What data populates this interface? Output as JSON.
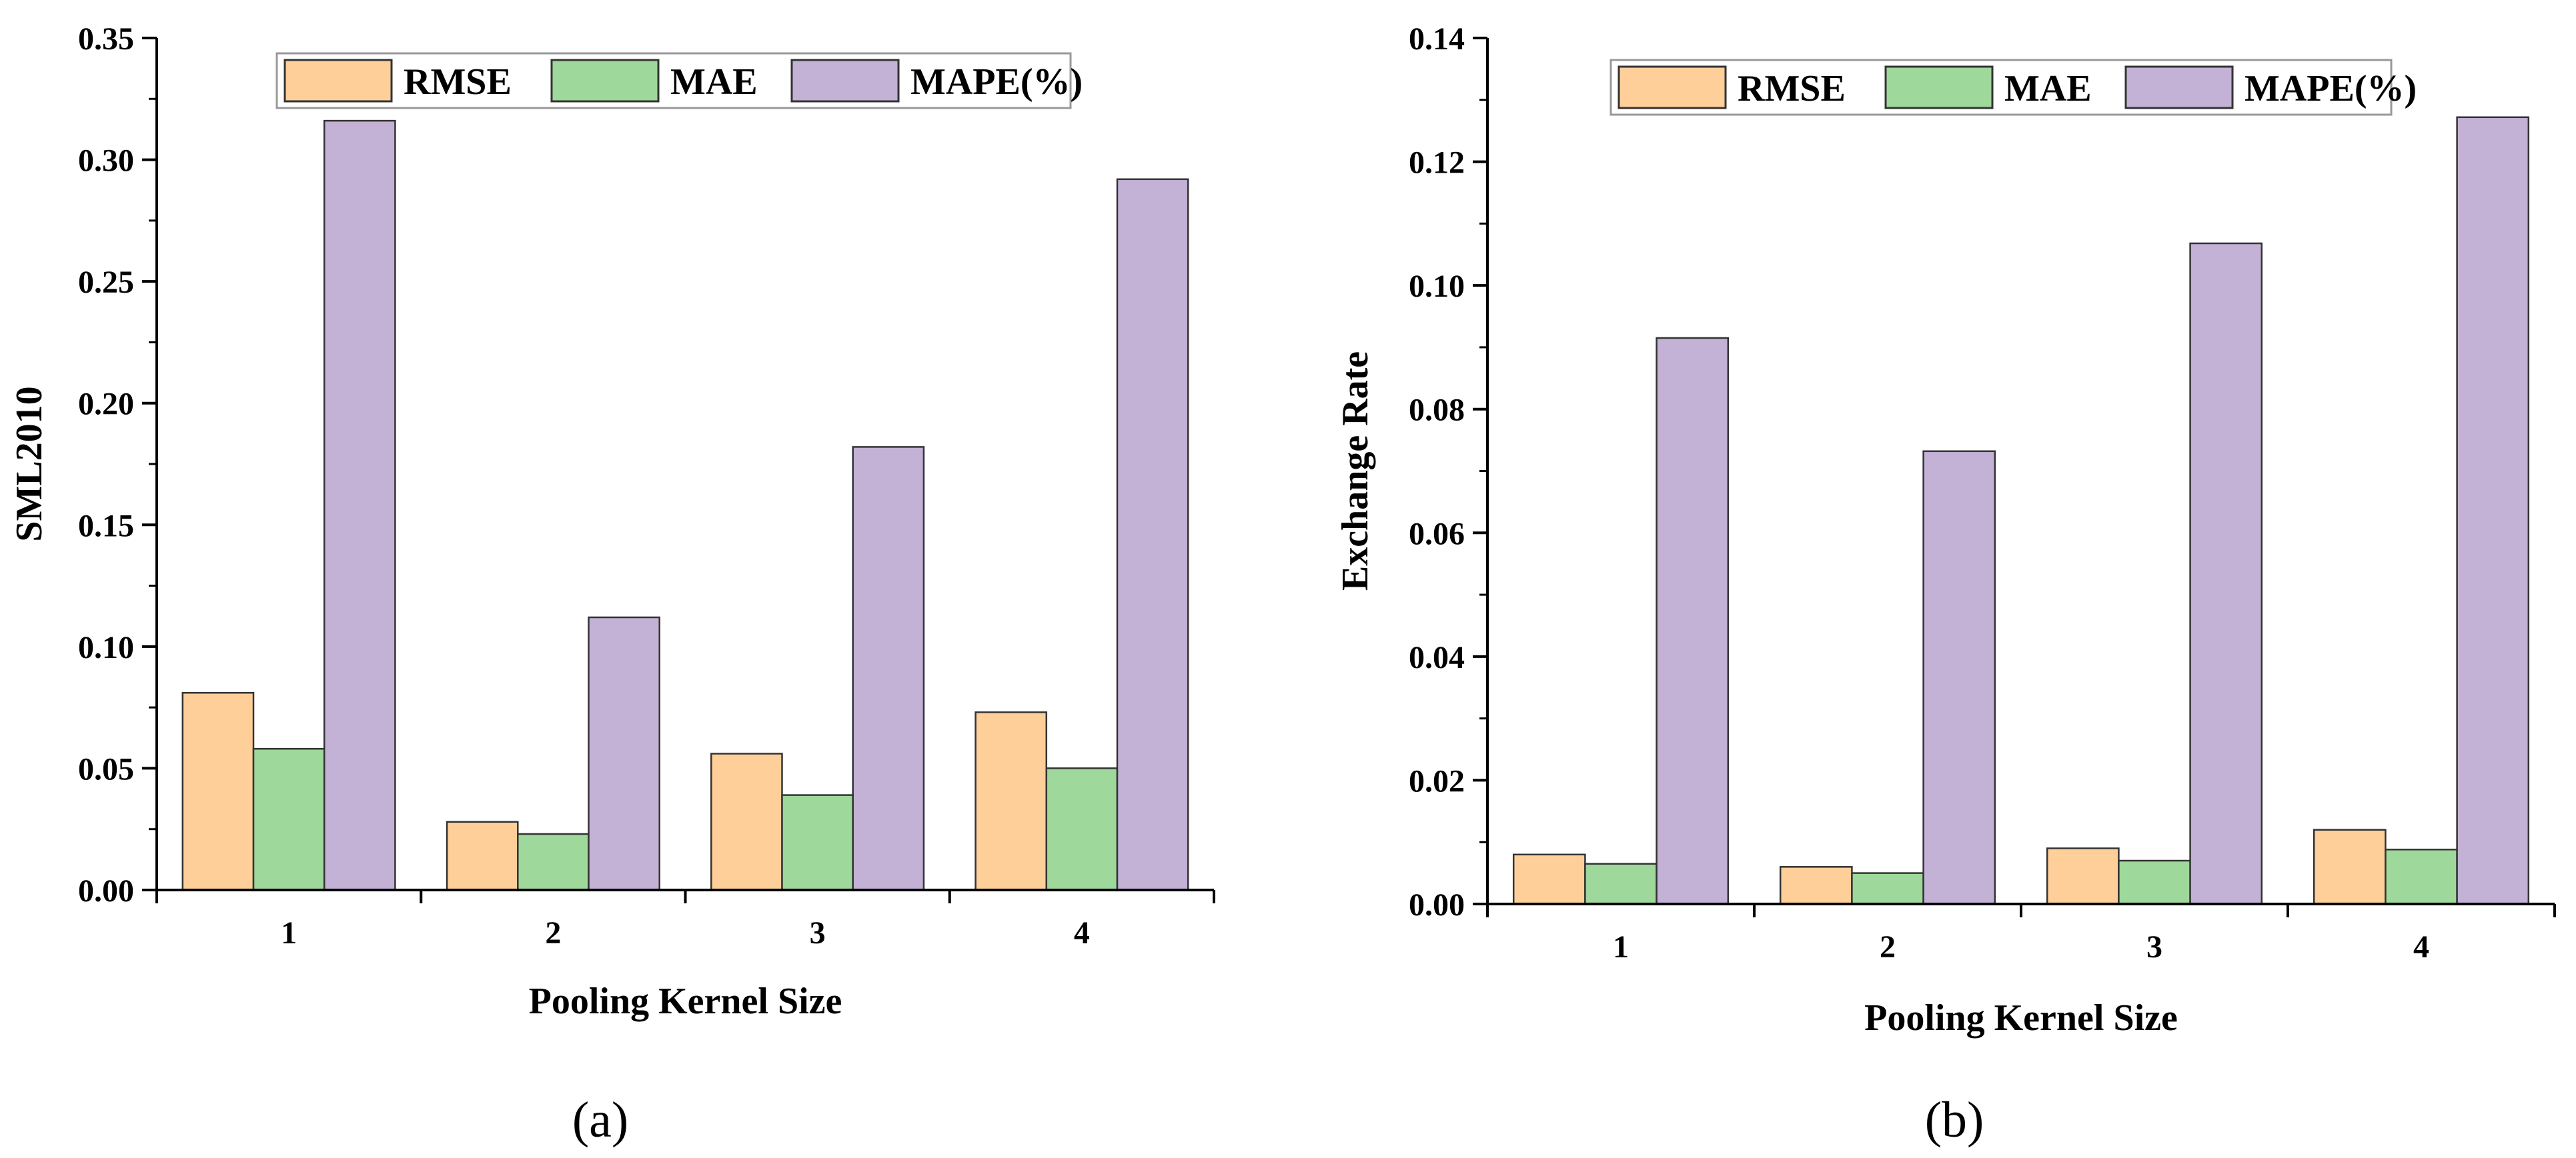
{
  "colors": {
    "RMSE": "#ffcf99",
    "MAE": "#9ed89a",
    "MAPE(%)": "#c3b1d6",
    "axis": "#000000",
    "bar_stroke": "#333333"
  },
  "chart_data": [
    {
      "type": "bar",
      "panel_label": "(a)",
      "categories": [
        "1",
        "2",
        "3",
        "4"
      ],
      "series": [
        {
          "name": "RMSE",
          "values": [
            0.081,
            0.028,
            0.056,
            0.073
          ]
        },
        {
          "name": "MAE",
          "values": [
            0.058,
            0.023,
            0.039,
            0.05
          ]
        },
        {
          "name": "MAPE(%)",
          "values": [
            0.316,
            0.112,
            0.182,
            0.292
          ]
        }
      ],
      "title": "",
      "xlabel": "Pooling Kernel Size",
      "ylabel": "SML2010",
      "ylim": [
        0,
        0.35
      ],
      "yticks": [
        "0.00",
        "0.05",
        "0.10",
        "0.15",
        "0.20",
        "0.25",
        "0.30",
        "0.35"
      ],
      "legend": {
        "placement": "top-center",
        "entries": [
          "RMSE",
          "MAE",
          "MAPE(%)"
        ]
      },
      "grid": false
    },
    {
      "type": "bar",
      "panel_label": "(b)",
      "categories": [
        "1",
        "2",
        "3",
        "4"
      ],
      "series": [
        {
          "name": "RMSE",
          "values": [
            0.008,
            0.006,
            0.009,
            0.012
          ]
        },
        {
          "name": "MAE",
          "values": [
            0.0065,
            0.005,
            0.007,
            0.0088
          ]
        },
        {
          "name": "MAPE(%)",
          "values": [
            0.0915,
            0.0732,
            0.1068,
            0.1272
          ]
        }
      ],
      "title": "",
      "xlabel": "Pooling Kernel Size",
      "ylabel": "Exchange Rate",
      "ylim": [
        0,
        0.14
      ],
      "yticks": [
        "0.00",
        "0.02",
        "0.04",
        "0.06",
        "0.08",
        "0.10",
        "0.12",
        "0.14"
      ],
      "legend": {
        "placement": "top-center",
        "entries": [
          "RMSE",
          "MAE",
          "MAPE(%)"
        ]
      },
      "grid": false
    }
  ]
}
